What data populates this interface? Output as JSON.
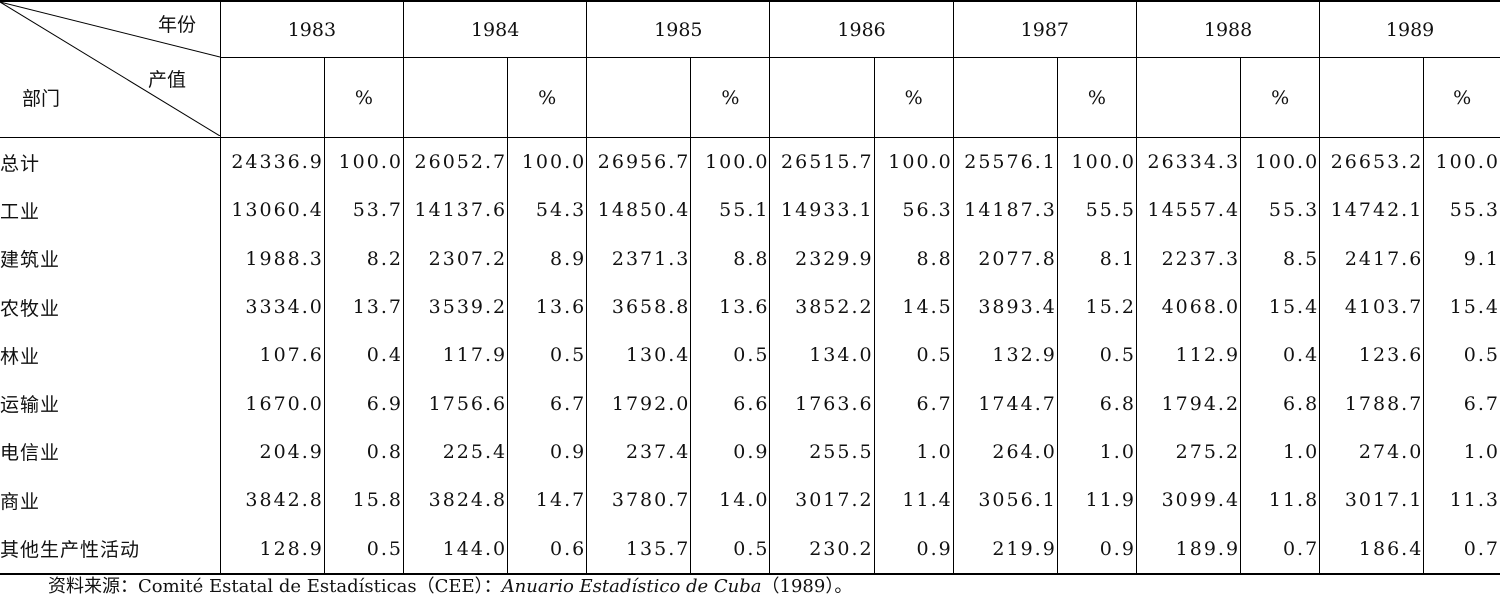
{
  "header": {
    "corner_top": "年份",
    "corner_mid": "产值",
    "corner_left": "部门",
    "years": [
      "1983",
      "1984",
      "1985",
      "1986",
      "1987",
      "1988",
      "1989"
    ],
    "unit_value": "",
    "unit_pct": "%"
  },
  "rows": [
    {
      "sector": "总计",
      "vals": [
        "24336.9",
        "100.0",
        "26052.7",
        "100.0",
        "26956.7",
        "100.0",
        "26515.7",
        "100.0",
        "25576.1",
        "100.0",
        "26334.3",
        "100.0",
        "26653.2",
        "100.0"
      ]
    },
    {
      "sector": "工业",
      "vals": [
        "13060.4",
        "53.7",
        "14137.6",
        "54.3",
        "14850.4",
        "55.1",
        "14933.1",
        "56.3",
        "14187.3",
        "55.5",
        "14557.4",
        "55.3",
        "14742.1",
        "55.3"
      ]
    },
    {
      "sector": "建筑业",
      "vals": [
        "1988.3",
        "8.2",
        "2307.2",
        "8.9",
        "2371.3",
        "8.8",
        "2329.9",
        "8.8",
        "2077.8",
        "8.1",
        "2237.3",
        "8.5",
        "2417.6",
        "9.1"
      ]
    },
    {
      "sector": "农牧业",
      "vals": [
        "3334.0",
        "13.7",
        "3539.2",
        "13.6",
        "3658.8",
        "13.6",
        "3852.2",
        "14.5",
        "3893.4",
        "15.2",
        "4068.0",
        "15.4",
        "4103.7",
        "15.4"
      ]
    },
    {
      "sector": "林业",
      "vals": [
        "107.6",
        "0.4",
        "117.9",
        "0.5",
        "130.4",
        "0.5",
        "134.0",
        "0.5",
        "132.9",
        "0.5",
        "112.9",
        "0.4",
        "123.6",
        "0.5"
      ]
    },
    {
      "sector": "运输业",
      "vals": [
        "1670.0",
        "6.9",
        "1756.6",
        "6.7",
        "1792.0",
        "6.6",
        "1763.6",
        "6.7",
        "1744.7",
        "6.8",
        "1794.2",
        "6.8",
        "1788.7",
        "6.7"
      ]
    },
    {
      "sector": "电信业",
      "vals": [
        "204.9",
        "0.8",
        "225.4",
        "0.9",
        "237.4",
        "0.9",
        "255.5",
        "1.0",
        "264.0",
        "1.0",
        "275.2",
        "1.0",
        "274.0",
        "1.0"
      ]
    },
    {
      "sector": "商业",
      "vals": [
        "3842.8",
        "15.8",
        "3824.8",
        "14.7",
        "3780.7",
        "14.0",
        "3017.2",
        "11.4",
        "3056.1",
        "11.9",
        "3099.4",
        "11.8",
        "3017.1",
        "11.3"
      ]
    },
    {
      "sector": "其他生产性活动",
      "vals": [
        "128.9",
        "0.5",
        "144.0",
        "0.6",
        "135.7",
        "0.5",
        "230.2",
        "0.9",
        "219.9",
        "0.9",
        "189.9",
        "0.7",
        "186.4",
        "0.7"
      ]
    }
  ],
  "source": {
    "prefix": "资料来源：Comité Estatal de Estadísticas（CEE）：",
    "title_italic": "Anuario Estadístico de Cuba",
    "suffix": "（1989）。"
  }
}
